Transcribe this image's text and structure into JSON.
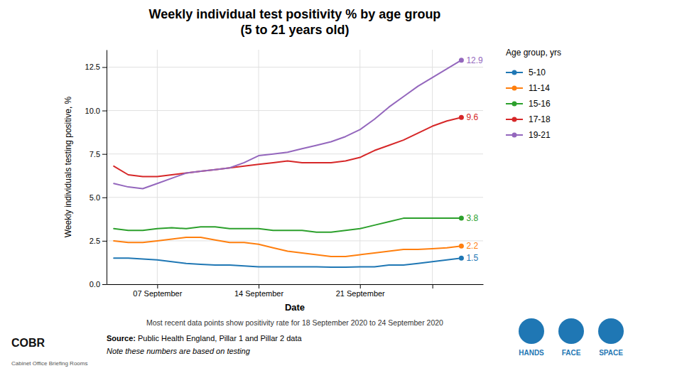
{
  "chart_data": {
    "type": "line",
    "title": "Weekly individual test positivity % by age group\n(5 to 21 years old)",
    "x_label": "Date",
    "y_label": "Weekly individuals testing positive, %",
    "x": [
      0,
      1,
      2,
      3,
      4,
      5,
      6,
      7,
      8,
      9,
      10,
      11,
      12,
      13,
      14,
      15,
      16,
      17,
      18,
      19,
      20,
      21,
      22,
      23,
      24
    ],
    "series": [
      {
        "name": "5-10",
        "values": [
          1.5,
          1.5,
          1.45,
          1.4,
          1.3,
          1.2,
          1.15,
          1.1,
          1.1,
          1.05,
          1.0,
          1.0,
          1.0,
          1.0,
          1.0,
          0.98,
          0.98,
          1.0,
          1.0,
          1.1,
          1.1,
          1.2,
          1.3,
          1.4,
          1.5
        ]
      },
      {
        "name": "11-14",
        "values": [
          2.5,
          2.4,
          2.4,
          2.5,
          2.6,
          2.7,
          2.7,
          2.55,
          2.4,
          2.4,
          2.3,
          2.1,
          1.9,
          1.8,
          1.7,
          1.6,
          1.6,
          1.7,
          1.8,
          1.9,
          2.0,
          2.0,
          2.05,
          2.1,
          2.2
        ]
      },
      {
        "name": "15-16",
        "values": [
          3.2,
          3.1,
          3.1,
          3.2,
          3.25,
          3.2,
          3.3,
          3.3,
          3.2,
          3.2,
          3.2,
          3.1,
          3.1,
          3.1,
          3.0,
          3.0,
          3.1,
          3.2,
          3.4,
          3.6,
          3.8,
          3.8,
          3.8,
          3.8,
          3.8
        ]
      },
      {
        "name": "17-18",
        "values": [
          6.8,
          6.3,
          6.2,
          6.2,
          6.3,
          6.4,
          6.5,
          6.6,
          6.7,
          6.8,
          6.9,
          7.0,
          7.1,
          7.0,
          7.0,
          7.0,
          7.1,
          7.3,
          7.7,
          8.0,
          8.3,
          8.7,
          9.1,
          9.4,
          9.6
        ]
      },
      {
        "name": "19-21",
        "values": [
          5.8,
          5.6,
          5.5,
          5.8,
          6.1,
          6.4,
          6.5,
          6.6,
          6.7,
          7.0,
          7.4,
          7.5,
          7.6,
          7.8,
          8.0,
          8.2,
          8.5,
          8.9,
          9.5,
          10.2,
          10.8,
          11.4,
          11.9,
          12.4,
          12.9
        ]
      }
    ],
    "annotations": [
      {
        "text": "1.5",
        "x": 24,
        "y": 1.5
      },
      {
        "text": "2.2",
        "x": 24,
        "y": 2.2
      },
      {
        "text": "3.8",
        "x": 24,
        "y": 3.8
      },
      {
        "text": "9.6",
        "x": 24,
        "y": 9.6
      },
      {
        "text": "12.9",
        "x": 24,
        "y": 12.9
      }
    ],
    "xlim": [
      -0.5,
      25.5
    ],
    "xticks": [
      {
        "value": 3,
        "label": "07 September"
      },
      {
        "value": 10,
        "label": "14 September"
      },
      {
        "value": 17,
        "label": "21 September"
      },
      {
        "value": 22,
        "label": null
      }
    ],
    "ylim": [
      0.0,
      13.5
    ],
    "yticks": [
      {
        "value": 0,
        "label": "0.0"
      },
      2.5,
      {
        "value": 5,
        "label": "5.0"
      },
      7.5,
      {
        "value": 10,
        "label": "10.0"
      },
      12.5
    ],
    "grid": true,
    "legend": "right",
    "legend_title": "Age group, yrs",
    "caption": "Most recent data points show positivity rate for 18 September 2020 to 24 September 2020",
    "source_label": "Source:",
    "source": " Public Health England, Pillar 1 and Pillar 2 data",
    "note": "Note these numbers are based on testing",
    "logo_text": "COBR",
    "logo_subtitle": "Cabinet Office Briefing Rooms",
    "icon_labels": [
      "HANDS",
      "FACE",
      "SPACE"
    ]
  }
}
